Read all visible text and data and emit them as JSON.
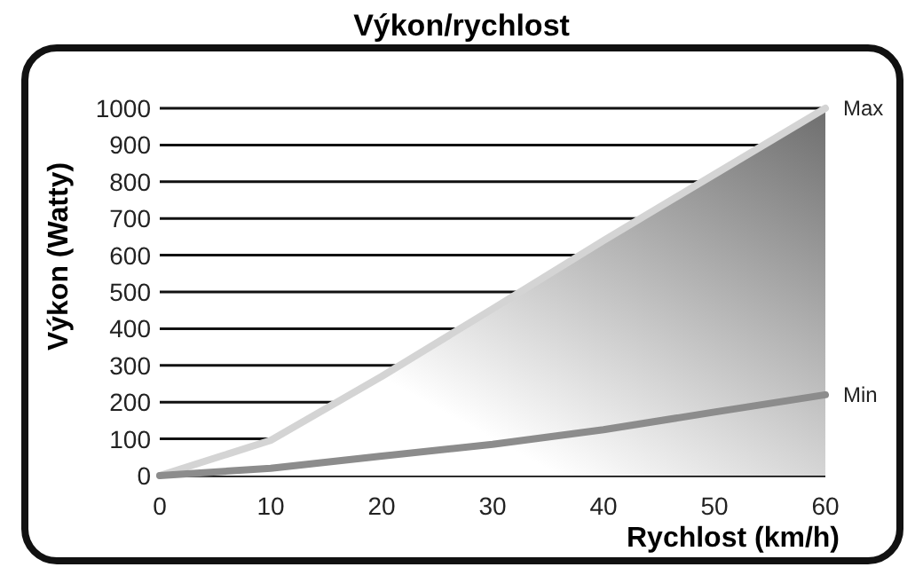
{
  "chart_data": {
    "type": "line",
    "title": "Výkon/rychlost",
    "xlabel": "Rychlost (km/h)",
    "ylabel": "Výkon (Watty)",
    "x": [
      0,
      10,
      20,
      30,
      40,
      50,
      60
    ],
    "series": [
      {
        "name": "Max",
        "type": "area",
        "color": "#d4d4d4",
        "values": [
          0,
          96,
          270,
          454,
          640,
          820,
          1000
        ]
      },
      {
        "name": "Min",
        "type": "line",
        "color": "#8c8c8c",
        "values": [
          0,
          20,
          53,
          85,
          125,
          173,
          220
        ]
      }
    ],
    "xlim": [
      0,
      60
    ],
    "xticks": [
      0,
      10,
      20,
      30,
      40,
      50,
      60
    ],
    "ylim": [
      0,
      1000
    ],
    "yticks": [
      0,
      100,
      200,
      300,
      400,
      500,
      600,
      700,
      800,
      900,
      1000
    ],
    "grid": "y",
    "legend": false,
    "marker": "none",
    "line_style": "solid"
  }
}
